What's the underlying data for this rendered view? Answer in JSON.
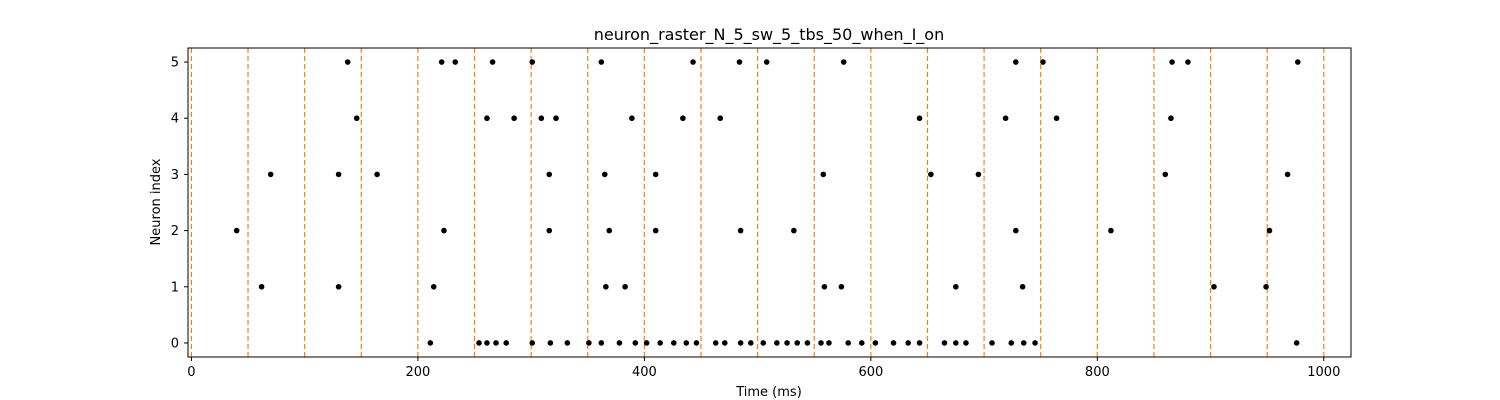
{
  "chart_data": {
    "type": "scatter",
    "title": "neuron_raster_N_5_sw_5_tbs_50_when_I_on",
    "xlabel": "Time (ms)",
    "ylabel": "Neuron index",
    "xlim": [
      -3,
      1024
    ],
    "ylim": [
      -0.25,
      5.25
    ],
    "xticks": [
      0,
      200,
      400,
      600,
      800,
      1000
    ],
    "yticks": [
      0,
      1,
      2,
      3,
      4,
      5
    ],
    "grid": false,
    "legend": "none",
    "point_color": "#000000",
    "vline_color": "#ff7f0e",
    "vlines": [
      0,
      50,
      100,
      150,
      200,
      250,
      300,
      350,
      400,
      450,
      500,
      550,
      600,
      650,
      700,
      750,
      800,
      850,
      900,
      950,
      1000
    ],
    "spikes": [
      {
        "neuron": 0,
        "times": [
          211,
          254,
          261,
          269,
          278,
          301,
          317,
          332,
          351,
          362,
          378,
          392,
          402,
          414,
          426,
          437,
          446,
          463,
          471,
          485,
          494,
          505,
          517,
          526,
          535,
          544,
          556,
          563,
          580,
          592,
          604,
          620,
          633,
          643,
          665,
          675,
          684,
          707,
          724,
          735,
          745,
          976
        ]
      },
      {
        "neuron": 1,
        "times": [
          62,
          130,
          214,
          366,
          383,
          559,
          574,
          675,
          734,
          903,
          949
        ]
      },
      {
        "neuron": 2,
        "times": [
          40,
          223,
          316,
          369,
          410,
          485,
          532,
          728,
          812,
          952
        ]
      },
      {
        "neuron": 3,
        "times": [
          70,
          130,
          164,
          316,
          365,
          410,
          558,
          653,
          695,
          860,
          968
        ]
      },
      {
        "neuron": 4,
        "times": [
          146,
          261,
          285,
          309,
          322,
          389,
          434,
          467,
          643,
          719,
          764,
          865
        ]
      },
      {
        "neuron": 5,
        "times": [
          138,
          221,
          233,
          266,
          301,
          362,
          443,
          484,
          508,
          576,
          728,
          752,
          866,
          880,
          977
        ]
      }
    ]
  }
}
